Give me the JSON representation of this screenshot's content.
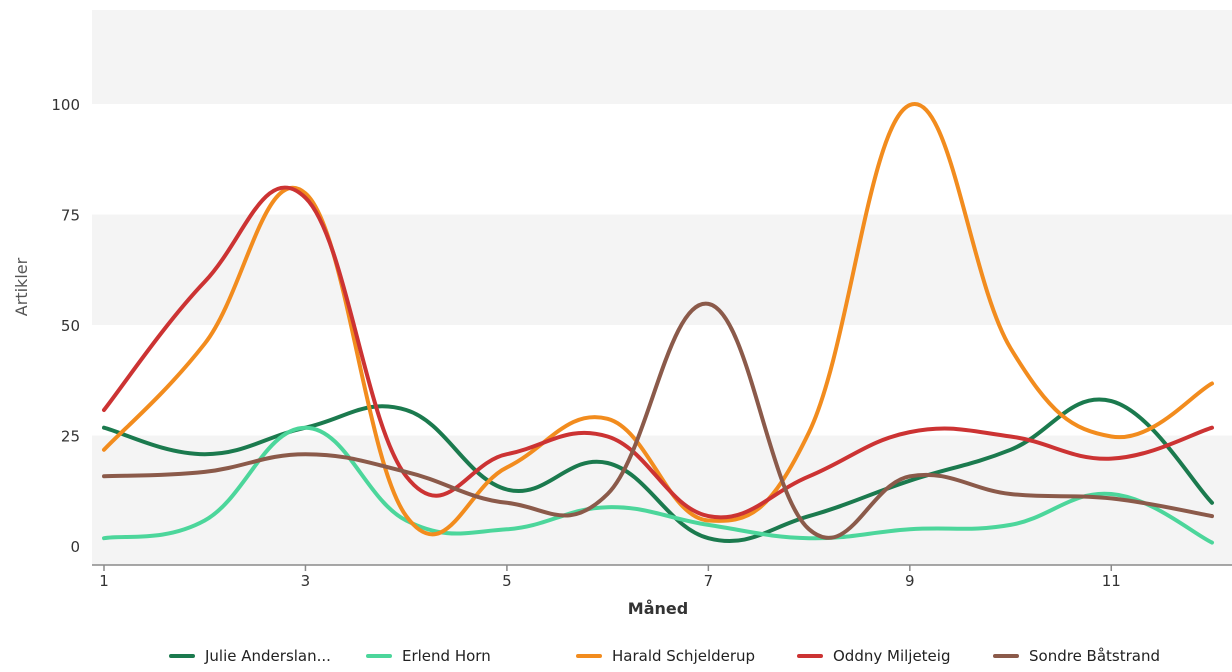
{
  "chart_data": {
    "type": "line",
    "title": "",
    "xlabel": "Måned",
    "ylabel": "Artikler",
    "x": [
      1,
      2,
      3,
      4,
      5,
      6,
      7,
      8,
      9,
      10,
      11,
      12
    ],
    "x_ticks": [
      1,
      3,
      5,
      7,
      9,
      11
    ],
    "y_ticks": [
      0,
      25,
      50,
      75,
      100
    ],
    "xlim": [
      1,
      12
    ],
    "ylim": [
      0,
      125
    ],
    "grid": "alternating horizontal bands",
    "legend_position": "bottom",
    "series": [
      {
        "name": "Julie Anderslan...",
        "color": "#1b7a4e",
        "values": [
          27,
          21,
          27,
          31,
          13,
          19,
          2,
          7,
          15,
          22,
          33,
          10
        ]
      },
      {
        "name": "Erlend Horn",
        "color": "#4cd69b",
        "values": [
          2,
          6,
          27,
          6,
          4,
          9,
          5,
          2,
          4,
          5,
          12,
          1
        ]
      },
      {
        "name": "Harald Schjelderup",
        "color": "#f28c1e",
        "values": [
          22,
          46,
          80,
          7,
          18,
          29,
          6,
          26,
          100,
          45,
          25,
          37
        ]
      },
      {
        "name": "Oddny Miljeteig",
        "color": "#cc3333",
        "values": [
          31,
          60,
          79,
          16,
          21,
          25,
          7,
          16,
          26,
          25,
          20,
          27
        ]
      },
      {
        "name": "Sondre Båtstrand",
        "color": "#8b5a4a",
        "values": [
          16,
          17,
          21,
          17,
          10,
          12,
          55,
          4,
          16,
          12,
          11,
          7
        ]
      }
    ]
  }
}
